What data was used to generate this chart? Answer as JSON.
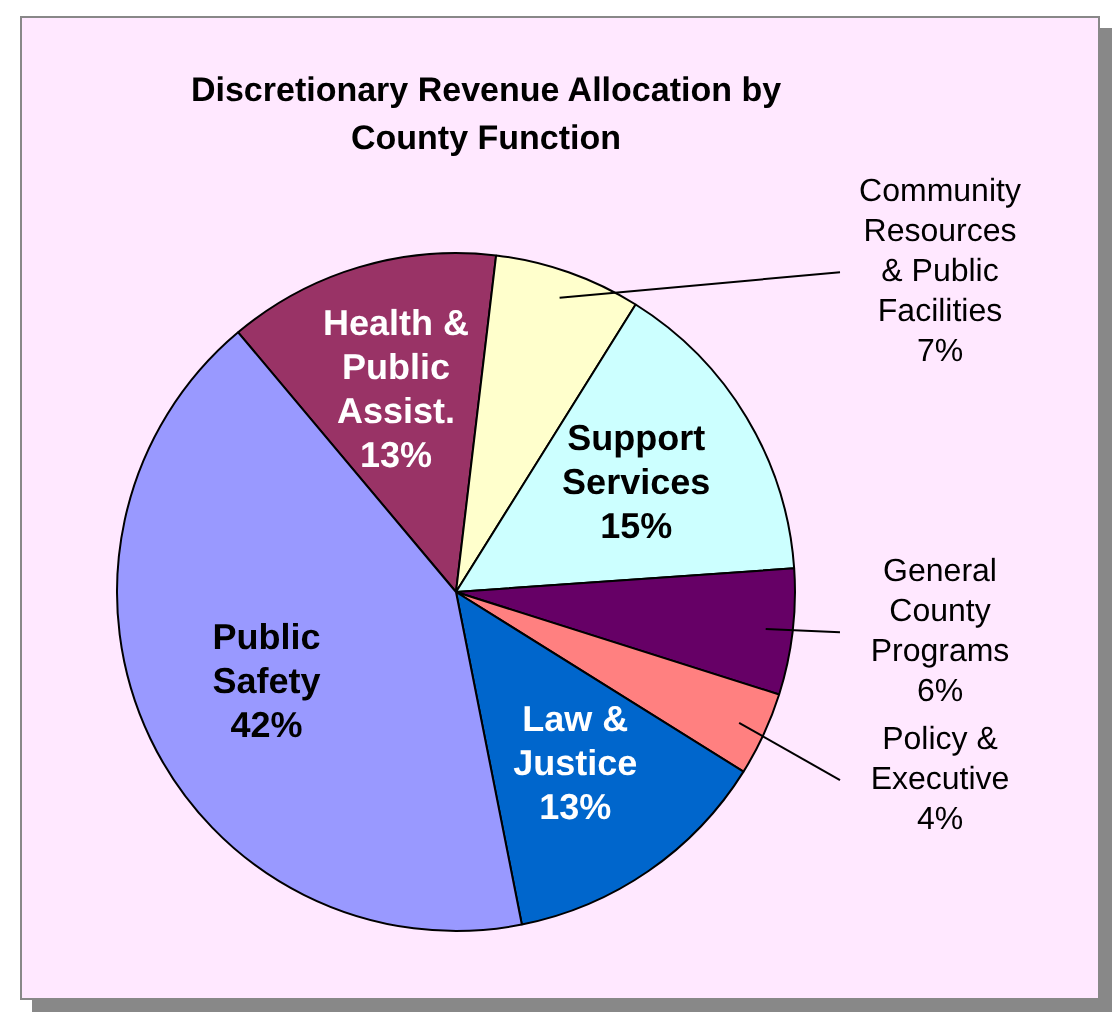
{
  "chart_data": {
    "type": "pie",
    "title": "Discretionary Revenue Allocation by County Function",
    "categories": [
      "Health & Public Assist.",
      "Community Resources & Public Facilities",
      "Support Services",
      "General County Programs",
      "Policy & Executive",
      "Law & Justice",
      "Public Safety"
    ],
    "values": [
      13,
      7,
      15,
      6,
      4,
      13,
      42
    ],
    "value_labels": [
      "13%",
      "7%",
      "15%",
      "6%",
      "4%",
      "13%",
      "42%"
    ],
    "colors": [
      "#993366",
      "#ffffcc",
      "#ccffff",
      "#660066",
      "#ff8080",
      "#0066cc",
      "#9999ff"
    ],
    "legend": false
  }
}
